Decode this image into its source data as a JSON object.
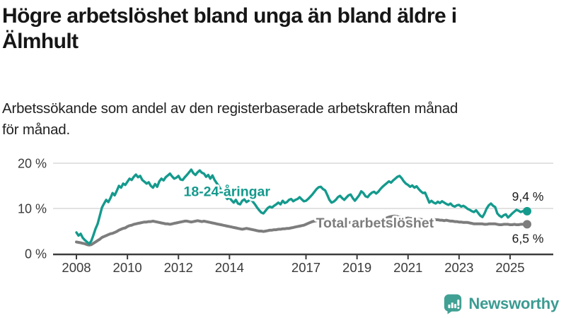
{
  "header": {
    "title_lines": [
      "Högre arbetslöshet bland unga än bland äldre i",
      "Älmhult"
    ],
    "subtitle_lines": [
      "Arbetssökande som andel av den registerbaserade arbetskraften månad",
      "för månad."
    ]
  },
  "chart_data": {
    "type": "line",
    "unit": "%",
    "x_start": {
      "year": 2008,
      "month": 1
    },
    "x_end": {
      "year": 2025,
      "month": 9
    },
    "x_tick_labels": [
      "2008",
      "2010",
      "2012",
      "2014",
      "2017",
      "2019",
      "2021",
      "2023",
      "2025"
    ],
    "y_ticks": [
      {
        "value": 0,
        "label": "0 %"
      },
      {
        "value": 10,
        "label": "10 %"
      },
      {
        "value": 20,
        "label": "20 %"
      }
    ],
    "ylim": [
      0,
      21.5
    ],
    "grid": "horizontal",
    "colors": {
      "youth": "#149a8d",
      "total": "#7d7d7d",
      "axis": "#3d3d3d",
      "gridline": "#d9d9d9",
      "value_label": "#1a1a1a"
    },
    "series": [
      {
        "id": "total",
        "name": "Total arbetslöshet",
        "color": "#7d7d7d",
        "end_label": "6,5 %",
        "end_value": 6.5,
        "end_label_position": "below",
        "label_anchor": {
          "x_year": 2019.7,
          "y_value": 6.9
        },
        "values": [
          2.6,
          2.5,
          2.4,
          2.3,
          2.2,
          2.0,
          1.9,
          2.0,
          2.3,
          2.6,
          2.9,
          3.2,
          3.6,
          3.8,
          4.0,
          4.2,
          4.4,
          4.5,
          4.7,
          4.9,
          5.2,
          5.4,
          5.6,
          5.7,
          6.0,
          6.2,
          6.3,
          6.5,
          6.6,
          6.7,
          6.8,
          6.9,
          7.0,
          7.0,
          7.1,
          7.1,
          7.2,
          7.1,
          7.0,
          6.9,
          6.8,
          6.7,
          6.6,
          6.6,
          6.5,
          6.6,
          6.7,
          6.8,
          6.9,
          7.0,
          7.1,
          7.2,
          7.2,
          7.1,
          7.0,
          7.1,
          7.2,
          7.3,
          7.2,
          7.1,
          7.2,
          7.1,
          7.0,
          6.9,
          6.8,
          6.7,
          6.6,
          6.5,
          6.4,
          6.3,
          6.2,
          6.1,
          6.0,
          5.9,
          5.8,
          5.7,
          5.6,
          5.5,
          5.4,
          5.5,
          5.6,
          5.5,
          5.4,
          5.3,
          5.2,
          5.1,
          5.0,
          5.0,
          4.9,
          5.0,
          5.1,
          5.2,
          5.2,
          5.3,
          5.3,
          5.4,
          5.4,
          5.5,
          5.5,
          5.6,
          5.6,
          5.7,
          5.8,
          5.9,
          6.0,
          6.1,
          6.2,
          6.3,
          6.5,
          6.7,
          6.9,
          7.1,
          7.2,
          7.3,
          7.3,
          7.4,
          7.3,
          7.3,
          7.2,
          7.2,
          7.1,
          7.1,
          7.0,
          7.0,
          6.9,
          6.9,
          6.8,
          6.8,
          6.9,
          6.9,
          7.0,
          7.0,
          7.1,
          7.1,
          7.2,
          7.2,
          7.1,
          7.1,
          7.2,
          7.2,
          7.3,
          7.3,
          7.4,
          7.4,
          7.6,
          7.7,
          7.9,
          8.1,
          8.2,
          8.3,
          8.3,
          8.2,
          8.1,
          8.0,
          7.9,
          7.8,
          7.9,
          7.8,
          7.8,
          7.7,
          7.7,
          7.6,
          7.6,
          7.5,
          7.5,
          7.4,
          7.4,
          7.5,
          7.6,
          7.5,
          7.5,
          7.4,
          7.4,
          7.3,
          7.4,
          7.3,
          7.2,
          7.2,
          7.1,
          7.1,
          7.0,
          7.0,
          6.9,
          6.9,
          6.9,
          6.8,
          6.7,
          6.6,
          6.6,
          6.6,
          6.6,
          6.6,
          6.5,
          6.5,
          6.6,
          6.6,
          6.6,
          6.6,
          6.5,
          6.4,
          6.4,
          6.5,
          6.5,
          6.5,
          6.4,
          6.4,
          6.5,
          6.4,
          6.4,
          6.5,
          6.5,
          6.5,
          6.5
        ]
      },
      {
        "id": "18-24",
        "name": "18-24-åringar",
        "color": "#149a8d",
        "end_label": "9,4 %",
        "end_value": 9.4,
        "end_label_position": "above",
        "label_anchor": {
          "x_year": 2013.9,
          "y_value": 13.8
        },
        "values": [
          4.7,
          4.0,
          4.4,
          3.5,
          3.0,
          2.6,
          2.2,
          2.8,
          4.1,
          5.5,
          6.6,
          8.4,
          10.2,
          11.1,
          11.9,
          11.4,
          12.3,
          13.4,
          12.9,
          13.9,
          15.0,
          14.6,
          15.5,
          15.2,
          15.9,
          16.6,
          16.3,
          17.0,
          17.5,
          16.9,
          17.2,
          16.3,
          15.9,
          15.5,
          15.8,
          15.0,
          14.6,
          15.4,
          14.8,
          16.0,
          16.6,
          16.2,
          16.9,
          17.3,
          17.7,
          17.1,
          16.6,
          16.8,
          17.2,
          16.4,
          16.3,
          16.9,
          17.4,
          18.0,
          18.6,
          17.8,
          17.4,
          18.0,
          18.4,
          17.9,
          17.7,
          17.0,
          17.4,
          16.6,
          17.3,
          16.3,
          15.6,
          14.9,
          14.1,
          13.3,
          12.6,
          12.1,
          12.4,
          11.8,
          11.3,
          11.9,
          11.1,
          10.9,
          11.7,
          12.0,
          11.4,
          11.7,
          12.1,
          11.5,
          10.9,
          10.2,
          9.6,
          9.1,
          8.9,
          9.5,
          10.1,
          10.4,
          10.2,
          10.6,
          10.9,
          11.3,
          10.9,
          11.7,
          11.2,
          11.4,
          11.9,
          12.1,
          11.6,
          11.9,
          12.1,
          12.5,
          12.0,
          11.6,
          11.7,
          12.1,
          12.6,
          13.1,
          13.7,
          14.3,
          14.7,
          14.8,
          14.3,
          14.0,
          13.0,
          11.9,
          11.3,
          11.5,
          11.9,
          12.5,
          12.8,
          12.3,
          11.9,
          12.4,
          12.9,
          13.1,
          12.3,
          11.7,
          12.3,
          12.9,
          13.8,
          13.4,
          12.7,
          12.5,
          13.1,
          13.5,
          13.7,
          13.3,
          13.7,
          14.3,
          14.8,
          15.2,
          15.6,
          16.0,
          15.7,
          16.2,
          16.6,
          17.0,
          17.2,
          16.7,
          16.0,
          15.5,
          15.2,
          14.8,
          15.1,
          14.6,
          14.9,
          14.3,
          13.8,
          13.4,
          13.5,
          12.4,
          11.3,
          11.7,
          11.3,
          11.1,
          11.5,
          11.2,
          11.6,
          11.3,
          11.0,
          10.8,
          11.1,
          10.6,
          10.4,
          10.7,
          10.8,
          10.4,
          10.6,
          10.3,
          9.9,
          9.7,
          9.4,
          9.2,
          9.6,
          9.0,
          8.4,
          8.1,
          8.9,
          10.0,
          10.7,
          11.1,
          10.6,
          10.3,
          8.9,
          8.4,
          8.1,
          8.5,
          8.7,
          8.0,
          8.4,
          8.9,
          9.3,
          9.7,
          9.5,
          9.2,
          9.4,
          9.5,
          9.4
        ]
      }
    ]
  },
  "branding": {
    "logo_text": "Newsworthy",
    "logo_color": "#3b9b92",
    "logo_icon": "bar-chart-speech-bubble-icon"
  }
}
